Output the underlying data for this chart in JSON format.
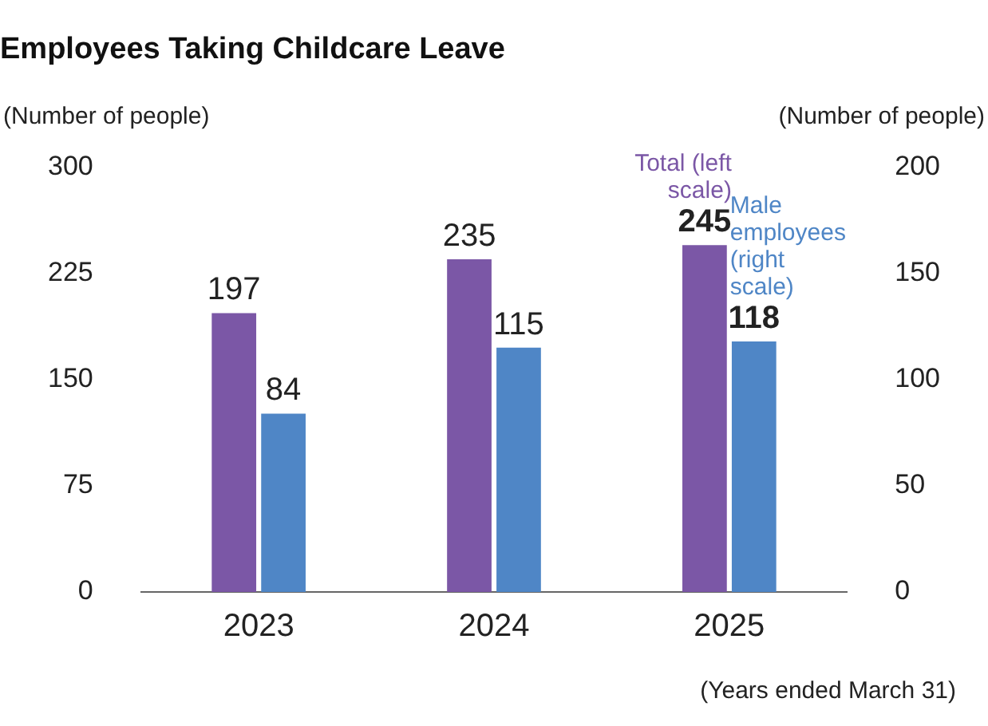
{
  "chart_data": {
    "type": "bar",
    "title": "Employees Taking Childcare Leave",
    "ylabel": "(Number of people)",
    "y2label": "(Number of people)",
    "categories": [
      "2023",
      "2024",
      "2025"
    ],
    "series": [
      {
        "name": "Total (left scale)",
        "color": "#7b57a6",
        "values": [
          197,
          235,
          245
        ]
      },
      {
        "name": "Male employees (right scale)",
        "color": "#4f86c6",
        "values": [
          84,
          115,
          118
        ],
        "axis": "y2"
      }
    ],
    "ylim": [
      0,
      300
    ],
    "yticks": [
      0,
      75,
      150,
      225,
      300
    ],
    "y2lim": [
      0,
      200
    ],
    "y2ticks": [
      0,
      50,
      100,
      150,
      200
    ],
    "data_labels": true,
    "grid": false,
    "legend": false,
    "annotations": [
      "(Years ended March 31)"
    ]
  }
}
